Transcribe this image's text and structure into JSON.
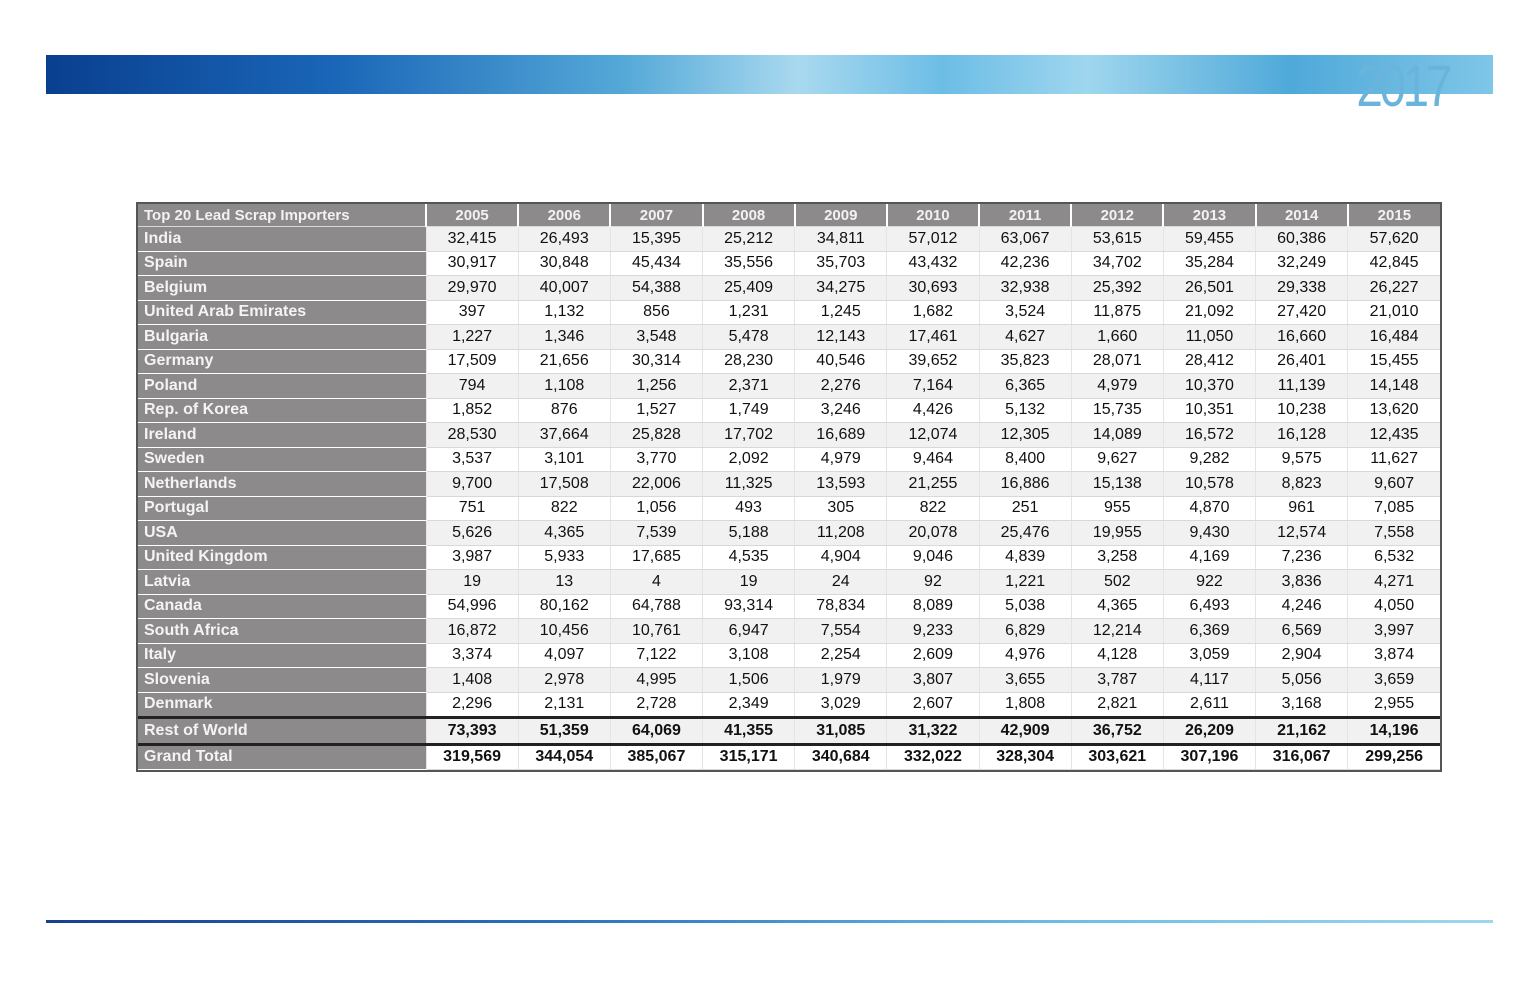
{
  "banner": {
    "year": "2017"
  },
  "table": {
    "header_label": "Top 20 Lead Scrap Importers",
    "years": [
      "2005",
      "2006",
      "2007",
      "2008",
      "2009",
      "2010",
      "2011",
      "2012",
      "2013",
      "2014",
      "2015"
    ],
    "rows": [
      {
        "country": "India",
        "values": [
          "32,415",
          "26,493",
          "15,395",
          "25,212",
          "34,811",
          "57,012",
          "63,067",
          "53,615",
          "59,455",
          "60,386",
          "57,620"
        ]
      },
      {
        "country": "Spain",
        "values": [
          "30,917",
          "30,848",
          "45,434",
          "35,556",
          "35,703",
          "43,432",
          "42,236",
          "34,702",
          "35,284",
          "32,249",
          "42,845"
        ]
      },
      {
        "country": "Belgium",
        "values": [
          "29,970",
          "40,007",
          "54,388",
          "25,409",
          "34,275",
          "30,693",
          "32,938",
          "25,392",
          "26,501",
          "29,338",
          "26,227"
        ]
      },
      {
        "country": "United Arab Emirates",
        "values": [
          "397",
          "1,132",
          "856",
          "1,231",
          "1,245",
          "1,682",
          "3,524",
          "11,875",
          "21,092",
          "27,420",
          "21,010"
        ]
      },
      {
        "country": "Bulgaria",
        "values": [
          "1,227",
          "1,346",
          "3,548",
          "5,478",
          "12,143",
          "17,461",
          "4,627",
          "1,660",
          "11,050",
          "16,660",
          "16,484"
        ]
      },
      {
        "country": "Germany",
        "values": [
          "17,509",
          "21,656",
          "30,314",
          "28,230",
          "40,546",
          "39,652",
          "35,823",
          "28,071",
          "28,412",
          "26,401",
          "15,455"
        ]
      },
      {
        "country": "Poland",
        "values": [
          "794",
          "1,108",
          "1,256",
          "2,371",
          "2,276",
          "7,164",
          "6,365",
          "4,979",
          "10,370",
          "11,139",
          "14,148"
        ]
      },
      {
        "country": "Rep. of Korea",
        "values": [
          "1,852",
          "876",
          "1,527",
          "1,749",
          "3,246",
          "4,426",
          "5,132",
          "15,735",
          "10,351",
          "10,238",
          "13,620"
        ]
      },
      {
        "country": "Ireland",
        "values": [
          "28,530",
          "37,664",
          "25,828",
          "17,702",
          "16,689",
          "12,074",
          "12,305",
          "14,089",
          "16,572",
          "16,128",
          "12,435"
        ]
      },
      {
        "country": "Sweden",
        "values": [
          "3,537",
          "3,101",
          "3,770",
          "2,092",
          "4,979",
          "9,464",
          "8,400",
          "9,627",
          "9,282",
          "9,575",
          "11,627"
        ]
      },
      {
        "country": "Netherlands",
        "values": [
          "9,700",
          "17,508",
          "22,006",
          "11,325",
          "13,593",
          "21,255",
          "16,886",
          "15,138",
          "10,578",
          "8,823",
          "9,607"
        ]
      },
      {
        "country": "Portugal",
        "values": [
          "751",
          "822",
          "1,056",
          "493",
          "305",
          "822",
          "251",
          "955",
          "4,870",
          "961",
          "7,085"
        ]
      },
      {
        "country": "USA",
        "values": [
          "5,626",
          "4,365",
          "7,539",
          "5,188",
          "11,208",
          "20,078",
          "25,476",
          "19,955",
          "9,430",
          "12,574",
          "7,558"
        ]
      },
      {
        "country": "United Kingdom",
        "values": [
          "3,987",
          "5,933",
          "17,685",
          "4,535",
          "4,904",
          "9,046",
          "4,839",
          "3,258",
          "4,169",
          "7,236",
          "6,532"
        ]
      },
      {
        "country": "Latvia",
        "values": [
          "19",
          "13",
          "4",
          "19",
          "24",
          "92",
          "1,221",
          "502",
          "922",
          "3,836",
          "4,271"
        ]
      },
      {
        "country": "Canada",
        "values": [
          "54,996",
          "80,162",
          "64,788",
          "93,314",
          "78,834",
          "8,089",
          "5,038",
          "4,365",
          "6,493",
          "4,246",
          "4,050"
        ]
      },
      {
        "country": "South Africa",
        "values": [
          "16,872",
          "10,456",
          "10,761",
          "6,947",
          "7,554",
          "9,233",
          "6,829",
          "12,214",
          "6,369",
          "6,569",
          "3,997"
        ]
      },
      {
        "country": "Italy",
        "values": [
          "3,374",
          "4,097",
          "7,122",
          "3,108",
          "2,254",
          "2,609",
          "4,976",
          "4,128",
          "3,059",
          "2,904",
          "3,874"
        ]
      },
      {
        "country": "Slovenia",
        "values": [
          "1,408",
          "2,978",
          "4,995",
          "1,506",
          "1,979",
          "3,807",
          "3,655",
          "3,787",
          "4,117",
          "5,056",
          "3,659"
        ]
      },
      {
        "country": "Denmark",
        "values": [
          "2,296",
          "2,131",
          "2,728",
          "2,349",
          "3,029",
          "2,607",
          "1,808",
          "2,821",
          "2,611",
          "3,168",
          "2,955"
        ]
      }
    ],
    "rest_of_world": {
      "country": "Rest of World",
      "values": [
        "73,393",
        "51,359",
        "64,069",
        "41,355",
        "31,085",
        "31,322",
        "42,909",
        "36,752",
        "26,209",
        "21,162",
        "14,196"
      ]
    },
    "grand_total": {
      "country": "Grand Total",
      "values": [
        "319,569",
        "344,054",
        "385,067",
        "315,171",
        "340,684",
        "332,022",
        "328,304",
        "303,621",
        "307,196",
        "316,067",
        "299,256"
      ]
    }
  }
}
